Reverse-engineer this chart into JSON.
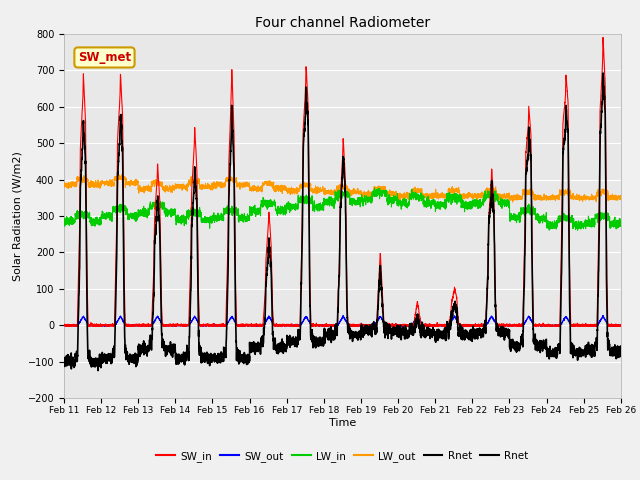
{
  "title": "Four channel Radiometer",
  "xlabel": "Time",
  "ylabel": "Solar Radiation (W/m2)",
  "ylim": [
    -200,
    800
  ],
  "yticks": [
    -200,
    -100,
    0,
    100,
    200,
    300,
    400,
    500,
    600,
    700,
    800
  ],
  "x_labels": [
    "Feb 11",
    "Feb 12",
    "Feb 13",
    "Feb 14",
    "Feb 15",
    "Feb 16",
    "Feb 17",
    "Feb 18",
    "Feb 19",
    "Feb 20",
    "Feb 21",
    "Feb 22",
    "Feb 23",
    "Feb 24",
    "Feb 25",
    "Feb 26"
  ],
  "colors": {
    "SW_in": "#ff0000",
    "SW_out": "#0000ff",
    "LW_in": "#00cc00",
    "LW_out": "#ff9900",
    "Rnet1": "#000000",
    "Rnet2": "#000000"
  },
  "annotation_text": "SW_met",
  "annotation_color": "#cc0000",
  "annotation_bg": "#ffffcc",
  "annotation_border": "#cc9900",
  "fig_facecolor": "#f0f0f0",
  "plot_bg_color": "#e8e8e8",
  "grid_color": "#ffffff",
  "n_days": 15,
  "pts_per_day": 288,
  "figsize": [
    6.4,
    4.8
  ],
  "dpi": 100
}
